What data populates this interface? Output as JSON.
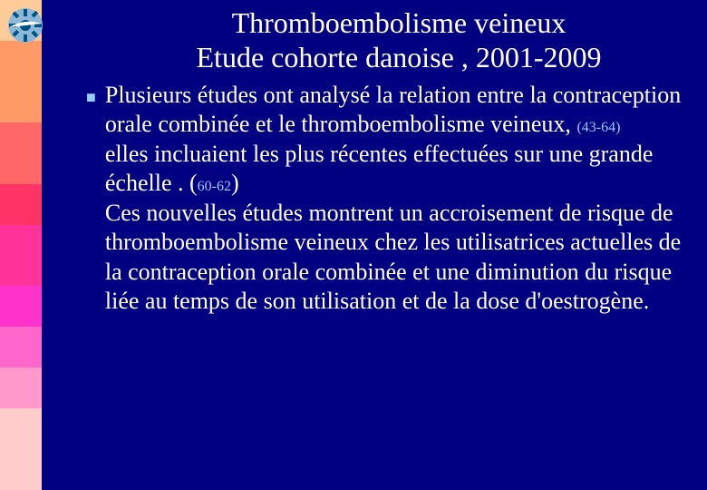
{
  "left_bar": {
    "colors": [
      "#ffcc99",
      "#ffcc99",
      "#ff9966",
      "#ff9966",
      "#ff9966",
      "#ff9966",
      "#ff6666",
      "#ff6666",
      "#ff6666",
      "#ff3366",
      "#ff3366",
      "#ff3399",
      "#ff3399",
      "#ff3399",
      "#ff33cc",
      "#ff33cc",
      "#ff66cc",
      "#ff66cc",
      "#ff99cc",
      "#ff99cc",
      "#ffcccc",
      "#ffcccc",
      "#ffcccc",
      "#ffcccc"
    ]
  },
  "logo": {
    "bg": "#8bb8d8",
    "gear": "#005080",
    "swoosh": "#ffffff"
  },
  "title": {
    "line1": "Thromboembolisme veineux",
    "line2": "Etude cohorte danoise , 2001-2009"
  },
  "bullet_glyph": "■",
  "body": {
    "part1": "Plusieurs études ont analysé la relation entre la contraception orale  combinée et le thromboembolisme veineux, ",
    "ref1": "  (43-64)",
    "part2": "elles incluaient les plus récentes effectuées sur une grande  échelle . (",
    "ref2": "60-62",
    "part3": ")",
    "part4": "Ces nouvelles études montrent un accroisement de risque  de thromboembolisme veineux chez les utilisatrices actuelles de la contraception orale combinée  et une diminution du risque liée  au temps de son utilisation et de la dose d'oestrogène."
  }
}
